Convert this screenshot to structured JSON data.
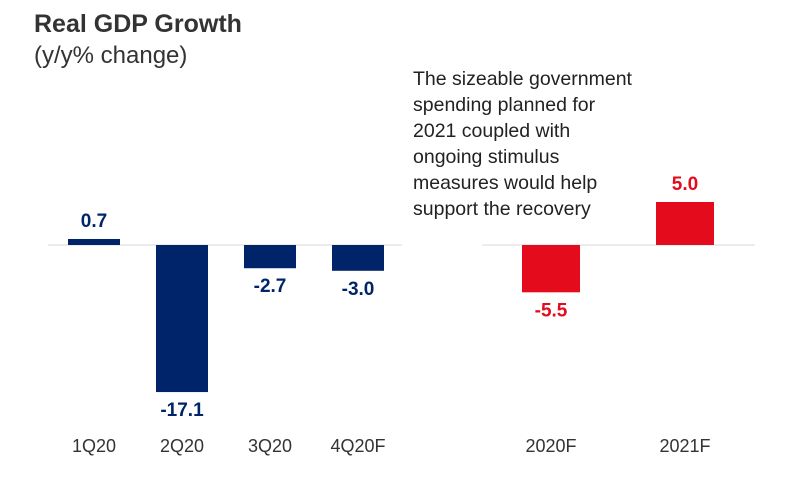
{
  "title": "Real GDP Growth",
  "subtitle": "(y/y% change)",
  "annotation_lines": [
    "The sizeable government",
    "spending planned for",
    "2021 coupled with",
    "ongoing stimulus",
    "measures would help",
    "support the recovery"
  ],
  "colors": {
    "quarterly": "#002469",
    "annual": "#e30b1c",
    "axis": "#d9d9d9",
    "tick_label": "#333333"
  },
  "chart_data": [
    {
      "type": "bar",
      "categories": [
        "1Q20",
        "2Q20",
        "3Q20",
        "4Q20F"
      ],
      "values": [
        0.7,
        -17.1,
        -2.7,
        -3.0
      ],
      "data_labels": [
        "0.7",
        "-17.1",
        "-2.7",
        "-3.0"
      ],
      "color": "#002469"
    },
    {
      "type": "bar",
      "categories": [
        "2020F",
        "2021F"
      ],
      "values": [
        -5.5,
        5.0
      ],
      "data_labels": [
        "-5.5",
        "5.0"
      ],
      "color": "#e30b1c"
    }
  ]
}
